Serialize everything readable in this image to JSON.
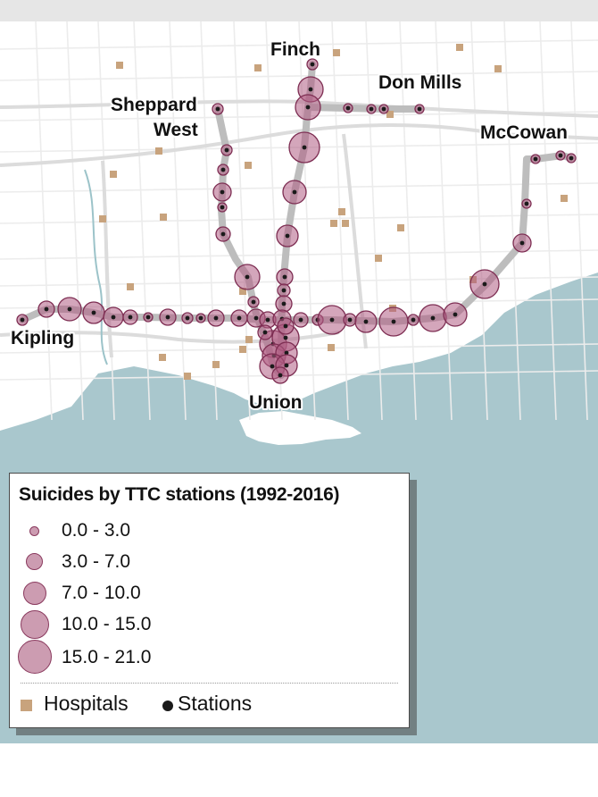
{
  "legend": {
    "title": "Suicides by TTC stations (1992-2016)",
    "bins": [
      {
        "label": "0.0 - 3.0"
      },
      {
        "label": "3.0 - 7.0"
      },
      {
        "label": "7.0 - 10.0"
      },
      {
        "label": "10.0 - 15.0"
      },
      {
        "label": "15.0 - 21.0"
      }
    ],
    "hospitals_label": "Hospitals",
    "stations_label": "Stations"
  },
  "station_labels": {
    "finch": "Finch",
    "don_mills": "Don Mills",
    "sheppard_west_1": "Sheppard",
    "sheppard_west_2": "West",
    "mccowan": "McCowan",
    "kipling": "Kipling",
    "union": "Union"
  },
  "colors": {
    "water": "#a9c7cd",
    "land": "#ffffff",
    "route": "#bdbdbd",
    "bubble_fill": "#b05d84",
    "bubble_stroke": "#7d2d52",
    "hospital": "#c8a37d",
    "station": "#1a1a1a"
  }
}
